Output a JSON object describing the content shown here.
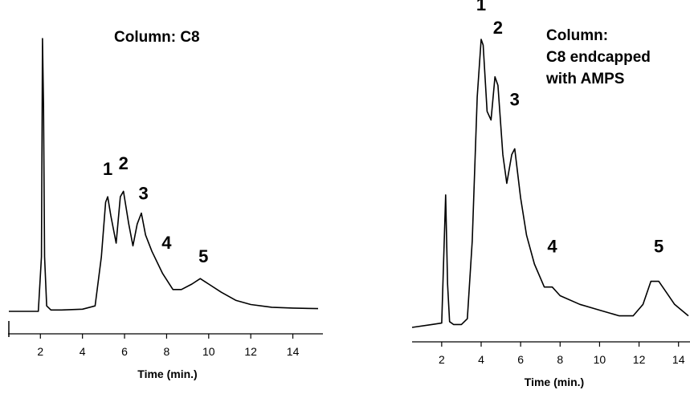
{
  "chart_data": [
    {
      "type": "line",
      "title": "Column:  C8",
      "title_lines": [
        "Column:  C8"
      ],
      "xlabel": "Time (min.)",
      "ylabel": "",
      "xlim": [
        0.5,
        15.2
      ],
      "ylim": [
        0,
        100
      ],
      "xticks": [
        2,
        4,
        6,
        8,
        10,
        12,
        14
      ],
      "x": [
        0.5,
        1.9,
        2.05,
        2.1,
        2.15,
        2.2,
        2.3,
        2.5,
        3.0,
        4.0,
        4.6,
        4.9,
        5.1,
        5.2,
        5.35,
        5.6,
        5.8,
        5.95,
        6.2,
        6.4,
        6.6,
        6.8,
        7.0,
        7.3,
        7.8,
        8.3,
        8.7,
        9.2,
        9.6,
        10.0,
        10.6,
        11.3,
        12.0,
        13.0,
        14.0,
        15.2
      ],
      "y": [
        0,
        0,
        20,
        100,
        75,
        20,
        2,
        0.5,
        0.5,
        0.8,
        2,
        20,
        40,
        42,
        35,
        25,
        42,
        44,
        32,
        24,
        32,
        36,
        28,
        22,
        14,
        8,
        8,
        10,
        12,
        10,
        7,
        4,
        2.5,
        1.5,
        1.2,
        1.0
      ],
      "peak_labels": [
        "1",
        "2",
        "3",
        "4",
        "5"
      ],
      "peak_label_pos": [
        [
          5.2,
          50
        ],
        [
          5.95,
          52
        ],
        [
          6.9,
          41
        ],
        [
          8.0,
          23
        ],
        [
          9.75,
          18
        ]
      ]
    },
    {
      "type": "line",
      "title": "Column: C8 endcapped with AMPS",
      "title_lines": [
        "Column:",
        "C8 endcapped",
        "with AMPS"
      ],
      "xlabel": "Time (min.)",
      "ylabel": "",
      "xlim": [
        0.5,
        14.5
      ],
      "ylim": [
        0,
        100
      ],
      "xticks": [
        2,
        4,
        6,
        8,
        10,
        12,
        14
      ],
      "x": [
        0.5,
        1.5,
        2.0,
        2.2,
        2.3,
        2.4,
        2.6,
        3.0,
        3.3,
        3.55,
        3.8,
        4.0,
        4.1,
        4.3,
        4.5,
        4.7,
        4.85,
        5.1,
        5.3,
        5.55,
        5.7,
        6.0,
        6.3,
        6.7,
        7.2,
        7.6,
        8.0,
        9.0,
        10.0,
        11.0,
        11.7,
        12.2,
        12.6,
        13.0,
        13.4,
        13.8,
        14.5
      ],
      "y": [
        0,
        1,
        1.5,
        46,
        15,
        2,
        1,
        1,
        3,
        30,
        80,
        100,
        98,
        75,
        72,
        87,
        84,
        60,
        50,
        60,
        62,
        45,
        32,
        22,
        14,
        14,
        11,
        8,
        6,
        4,
        4,
        8,
        16,
        16,
        12,
        8,
        4
      ],
      "peak_labels": [
        "1",
        "2",
        "3",
        "4",
        "5"
      ],
      "peak_label_pos": [
        [
          4.0,
          110
        ],
        [
          4.85,
          102
        ],
        [
          5.7,
          77
        ],
        [
          7.6,
          26
        ],
        [
          13.0,
          26
        ]
      ]
    }
  ]
}
